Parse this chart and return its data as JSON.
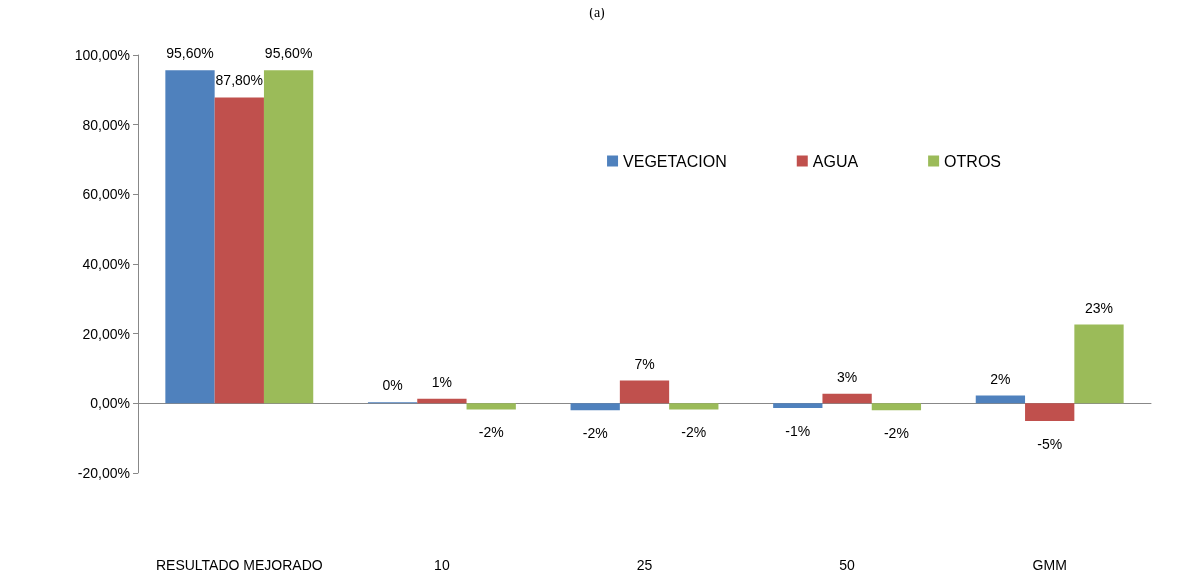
{
  "chart_data": {
    "type": "bar",
    "title": "(a)",
    "categories": [
      "RESULTADO MEJORADO",
      "10",
      "25",
      "50",
      "GMM"
    ],
    "series": [
      {
        "name": "VEGETACION",
        "color": "#4f81bd",
        "values": [
          95.6,
          0.3,
          -2,
          -1.4,
          2.2
        ],
        "value_labels": [
          "95,60%",
          "0%",
          "-2%",
          "-1%",
          "2%"
        ]
      },
      {
        "name": "AGUA",
        "color": "#c0504d",
        "values": [
          87.8,
          1.3,
          6.5,
          2.7,
          -5.1
        ],
        "value_labels": [
          "87,80%",
          "1%",
          "7%",
          "3%",
          "-5%"
        ]
      },
      {
        "name": "OTROS",
        "color": "#9bbb59",
        "values": [
          95.6,
          -1.8,
          -1.8,
          -2,
          22.6
        ],
        "value_labels": [
          "95,60%",
          "-2%",
          "-2%",
          "-2%",
          "23%"
        ]
      }
    ],
    "ylim": [
      -20,
      100
    ],
    "yticks": [
      {
        "value": -20,
        "label": "-20,00%"
      },
      {
        "value": 0,
        "label": "0,00%"
      },
      {
        "value": 20,
        "label": "20,00%"
      },
      {
        "value": 40,
        "label": "40,00%"
      },
      {
        "value": 60,
        "label": "60,00%"
      },
      {
        "value": 80,
        "label": "80,00%"
      },
      {
        "value": 100,
        "label": "100,00%"
      }
    ],
    "legend": "top right"
  }
}
